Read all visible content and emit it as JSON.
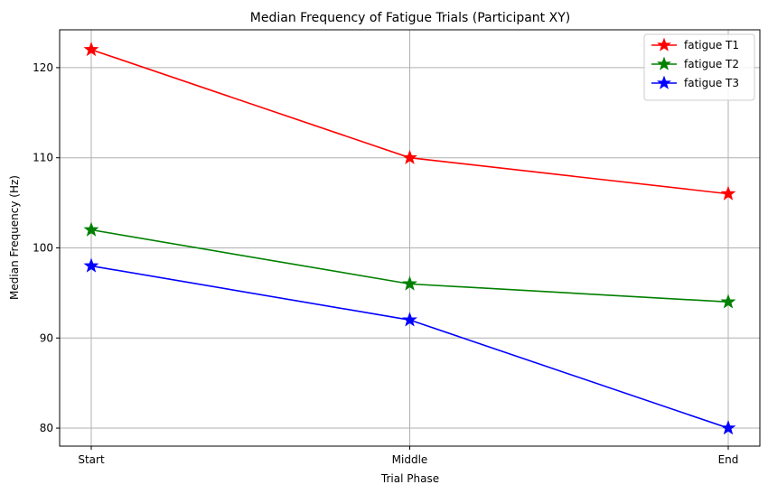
{
  "chart_data": {
    "type": "line",
    "title": "Median Frequency of Fatigue Trials (Participant XY)",
    "xlabel": "Trial Phase",
    "ylabel": "Median Frequency (Hz)",
    "categories": [
      "Start",
      "Middle",
      "End"
    ],
    "ylim": [
      78,
      124.2
    ],
    "yticks": [
      80,
      90,
      100,
      110,
      120
    ],
    "grid": true,
    "legend_position": "top-right",
    "marker": "star",
    "series": [
      {
        "name": "fatigue T1",
        "color": "#ff0000",
        "values": [
          122,
          110,
          106
        ]
      },
      {
        "name": "fatigue T2",
        "color": "#008000",
        "values": [
          102,
          96,
          94
        ]
      },
      {
        "name": "fatigue T3",
        "color": "#0000ff",
        "values": [
          98,
          92,
          80
        ]
      }
    ]
  }
}
